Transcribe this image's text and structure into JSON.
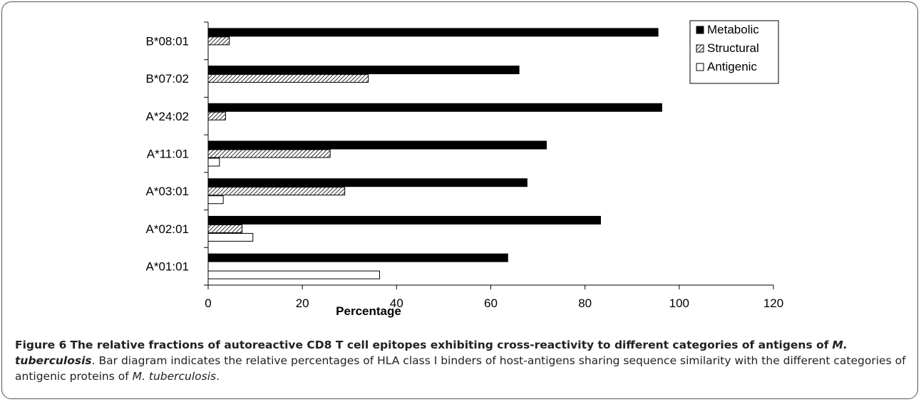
{
  "chart_data": {
    "type": "bar",
    "orientation": "horizontal",
    "categories": [
      "A*01:01",
      "A*02:01",
      "A*03:01",
      "A*11:01",
      "A*24:02",
      "B*07:02",
      "B*08:01"
    ],
    "series": [
      {
        "name": "Metabolic",
        "values": [
          63.6,
          83.3,
          67.7,
          71.8,
          96.3,
          66.0,
          95.5
        ],
        "fill": "solid"
      },
      {
        "name": "Structural",
        "values": [
          0,
          7.2,
          29.0,
          25.9,
          3.7,
          34.0,
          4.5
        ],
        "fill": "hatched"
      },
      {
        "name": "Antigenic",
        "values": [
          36.4,
          9.5,
          3.2,
          2.4,
          0,
          0,
          0
        ],
        "fill": "white"
      }
    ],
    "xlabel": "Percentage",
    "ylabel": "",
    "xlim": [
      0,
      120
    ],
    "xticks": [
      "0",
      "20",
      "40",
      "60",
      "80",
      "100",
      "120"
    ],
    "grid": false,
    "legend": "top-right"
  },
  "colors": {
    "bar_fill": "#000000",
    "bar_outline": "#000000",
    "background": "#ffffff"
  },
  "caption": {
    "figure_label": "Figure 6",
    "title_main": "The relative fractions of autoreactive CD8 T cell epitopes exhibiting cross-reactivity to different categories of antigens of",
    "title_species": "M. tuberculosis",
    "title_end": ".",
    "body_main": "Bar diagram indicates the relative percentages of HLA class I binders of host-antigens sharing sequence similarity with the different categories of antigenic proteins of",
    "body_species": "M. tuberculosis",
    "body_end": "."
  }
}
